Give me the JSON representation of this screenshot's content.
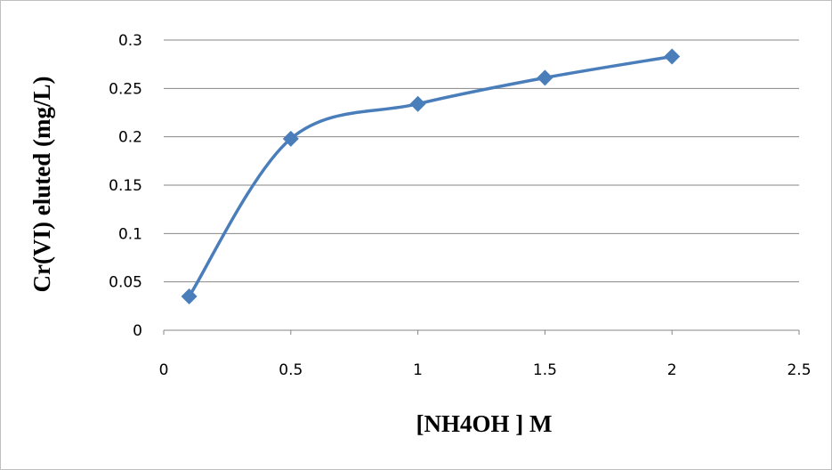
{
  "chart_data": {
    "type": "line",
    "smooth": true,
    "marker": "diamond",
    "series": [
      {
        "name": "",
        "color": "#4a7ebb",
        "x": [
          0.1,
          0.5,
          1,
          1.5,
          2
        ],
        "y": [
          0.035,
          0.198,
          0.234,
          0.261,
          0.283
        ]
      }
    ],
    "xlabel": "[NH4OH ] M",
    "ylabel": "Cr(VI) eluted (mg/L)",
    "xlim": [
      0,
      2.5
    ],
    "ylim": [
      0,
      0.3
    ],
    "xticks": [
      "0",
      "0.5",
      "1",
      "1.5",
      "2",
      "2.5"
    ],
    "yticks": [
      "0",
      "0.05",
      "0.1",
      "0.15",
      "0.2",
      "0.25",
      "0.3"
    ],
    "grid": "horizontal",
    "legend": "none"
  }
}
